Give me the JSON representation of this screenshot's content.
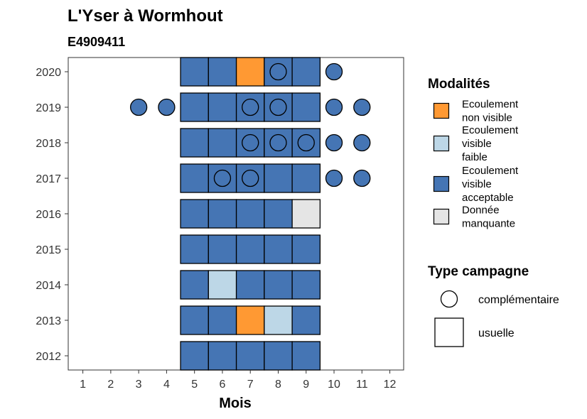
{
  "chart_data": {
    "type": "heatmap",
    "title": "L'Yser à Wormhout",
    "subtitle": "E4909411",
    "xlabel": "Mois",
    "ylabel": "",
    "x_ticks": [
      1,
      2,
      3,
      4,
      5,
      6,
      7,
      8,
      9,
      10,
      11,
      12
    ],
    "y_ticks": [
      2012,
      2013,
      2014,
      2015,
      2016,
      2017,
      2018,
      2019,
      2020
    ],
    "grid": false,
    "legend_position": "right",
    "modalites": {
      "title": "Modalités",
      "items": [
        {
          "key": "non_visible",
          "lines": [
            "Ecoulement",
            "non visible"
          ],
          "color": "#FF9933"
        },
        {
          "key": "faible",
          "lines": [
            "Ecoulement",
            "visible",
            "faible"
          ],
          "color": "#BDD7E7"
        },
        {
          "key": "acceptable",
          "lines": [
            "Ecoulement",
            "visible",
            "acceptable"
          ],
          "color": "#4575B4"
        },
        {
          "key": "manquante",
          "lines": [
            "Donnée",
            "manquante"
          ],
          "color": "#E5E5E5"
        }
      ]
    },
    "campagne": {
      "title": "Type campagne",
      "items": [
        {
          "key": "complementaire",
          "label": "complémentaire",
          "shape": "circle"
        },
        {
          "key": "usuelle",
          "label": "usuelle",
          "shape": "square"
        }
      ]
    },
    "points": [
      {
        "year": 2020,
        "month": 5,
        "modalite": "acceptable",
        "type": "usuelle"
      },
      {
        "year": 2020,
        "month": 6,
        "modalite": "acceptable",
        "type": "usuelle"
      },
      {
        "year": 2020,
        "month": 7,
        "modalite": "non_visible",
        "type": "usuelle"
      },
      {
        "year": 2020,
        "month": 8,
        "modalite": "acceptable",
        "type": "usuelle"
      },
      {
        "year": 2020,
        "month": 8,
        "modalite": "acceptable",
        "type": "complementaire"
      },
      {
        "year": 2020,
        "month": 9,
        "modalite": "acceptable",
        "type": "usuelle"
      },
      {
        "year": 2020,
        "month": 10,
        "modalite": "acceptable",
        "type": "complementaire"
      },
      {
        "year": 2019,
        "month": 3,
        "modalite": "acceptable",
        "type": "complementaire"
      },
      {
        "year": 2019,
        "month": 4,
        "modalite": "acceptable",
        "type": "complementaire"
      },
      {
        "year": 2019,
        "month": 5,
        "modalite": "acceptable",
        "type": "usuelle"
      },
      {
        "year": 2019,
        "month": 6,
        "modalite": "acceptable",
        "type": "usuelle"
      },
      {
        "year": 2019,
        "month": 7,
        "modalite": "acceptable",
        "type": "usuelle"
      },
      {
        "year": 2019,
        "month": 7,
        "modalite": "acceptable",
        "type": "complementaire"
      },
      {
        "year": 2019,
        "month": 8,
        "modalite": "acceptable",
        "type": "usuelle"
      },
      {
        "year": 2019,
        "month": 8,
        "modalite": "acceptable",
        "type": "complementaire"
      },
      {
        "year": 2019,
        "month": 9,
        "modalite": "acceptable",
        "type": "usuelle"
      },
      {
        "year": 2019,
        "month": 10,
        "modalite": "acceptable",
        "type": "complementaire"
      },
      {
        "year": 2019,
        "month": 11,
        "modalite": "acceptable",
        "type": "complementaire"
      },
      {
        "year": 2018,
        "month": 5,
        "modalite": "acceptable",
        "type": "usuelle"
      },
      {
        "year": 2018,
        "month": 6,
        "modalite": "acceptable",
        "type": "usuelle"
      },
      {
        "year": 2018,
        "month": 7,
        "modalite": "acceptable",
        "type": "usuelle"
      },
      {
        "year": 2018,
        "month": 7,
        "modalite": "acceptable",
        "type": "complementaire"
      },
      {
        "year": 2018,
        "month": 8,
        "modalite": "acceptable",
        "type": "usuelle"
      },
      {
        "year": 2018,
        "month": 8,
        "modalite": "acceptable",
        "type": "complementaire"
      },
      {
        "year": 2018,
        "month": 9,
        "modalite": "acceptable",
        "type": "usuelle"
      },
      {
        "year": 2018,
        "month": 9,
        "modalite": "acceptable",
        "type": "complementaire"
      },
      {
        "year": 2018,
        "month": 10,
        "modalite": "acceptable",
        "type": "complementaire"
      },
      {
        "year": 2018,
        "month": 11,
        "modalite": "acceptable",
        "type": "complementaire"
      },
      {
        "year": 2017,
        "month": 5,
        "modalite": "acceptable",
        "type": "usuelle"
      },
      {
        "year": 2017,
        "month": 6,
        "modalite": "acceptable",
        "type": "usuelle"
      },
      {
        "year": 2017,
        "month": 6,
        "modalite": "acceptable",
        "type": "complementaire"
      },
      {
        "year": 2017,
        "month": 7,
        "modalite": "acceptable",
        "type": "usuelle"
      },
      {
        "year": 2017,
        "month": 7,
        "modalite": "acceptable",
        "type": "complementaire"
      },
      {
        "year": 2017,
        "month": 8,
        "modalite": "acceptable",
        "type": "usuelle"
      },
      {
        "year": 2017,
        "month": 9,
        "modalite": "acceptable",
        "type": "usuelle"
      },
      {
        "year": 2017,
        "month": 10,
        "modalite": "acceptable",
        "type": "complementaire"
      },
      {
        "year": 2017,
        "month": 11,
        "modalite": "acceptable",
        "type": "complementaire"
      },
      {
        "year": 2016,
        "month": 5,
        "modalite": "acceptable",
        "type": "usuelle"
      },
      {
        "year": 2016,
        "month": 6,
        "modalite": "acceptable",
        "type": "usuelle"
      },
      {
        "year": 2016,
        "month": 7,
        "modalite": "acceptable",
        "type": "usuelle"
      },
      {
        "year": 2016,
        "month": 8,
        "modalite": "acceptable",
        "type": "usuelle"
      },
      {
        "year": 2016,
        "month": 9,
        "modalite": "manquante",
        "type": "usuelle"
      },
      {
        "year": 2015,
        "month": 5,
        "modalite": "acceptable",
        "type": "usuelle"
      },
      {
        "year": 2015,
        "month": 6,
        "modalite": "acceptable",
        "type": "usuelle"
      },
      {
        "year": 2015,
        "month": 7,
        "modalite": "acceptable",
        "type": "usuelle"
      },
      {
        "year": 2015,
        "month": 8,
        "modalite": "acceptable",
        "type": "usuelle"
      },
      {
        "year": 2015,
        "month": 9,
        "modalite": "acceptable",
        "type": "usuelle"
      },
      {
        "year": 2014,
        "month": 5,
        "modalite": "acceptable",
        "type": "usuelle"
      },
      {
        "year": 2014,
        "month": 6,
        "modalite": "faible",
        "type": "usuelle"
      },
      {
        "year": 2014,
        "month": 7,
        "modalite": "acceptable",
        "type": "usuelle"
      },
      {
        "year": 2014,
        "month": 8,
        "modalite": "acceptable",
        "type": "usuelle"
      },
      {
        "year": 2014,
        "month": 9,
        "modalite": "acceptable",
        "type": "usuelle"
      },
      {
        "year": 2013,
        "month": 5,
        "modalite": "acceptable",
        "type": "usuelle"
      },
      {
        "year": 2013,
        "month": 6,
        "modalite": "acceptable",
        "type": "usuelle"
      },
      {
        "year": 2013,
        "month": 7,
        "modalite": "non_visible",
        "type": "usuelle"
      },
      {
        "year": 2013,
        "month": 8,
        "modalite": "faible",
        "type": "usuelle"
      },
      {
        "year": 2013,
        "month": 9,
        "modalite": "acceptable",
        "type": "usuelle"
      },
      {
        "year": 2012,
        "month": 5,
        "modalite": "acceptable",
        "type": "usuelle"
      },
      {
        "year": 2012,
        "month": 6,
        "modalite": "acceptable",
        "type": "usuelle"
      },
      {
        "year": 2012,
        "month": 7,
        "modalite": "acceptable",
        "type": "usuelle"
      },
      {
        "year": 2012,
        "month": 8,
        "modalite": "acceptable",
        "type": "usuelle"
      },
      {
        "year": 2012,
        "month": 9,
        "modalite": "acceptable",
        "type": "usuelle"
      }
    ]
  }
}
